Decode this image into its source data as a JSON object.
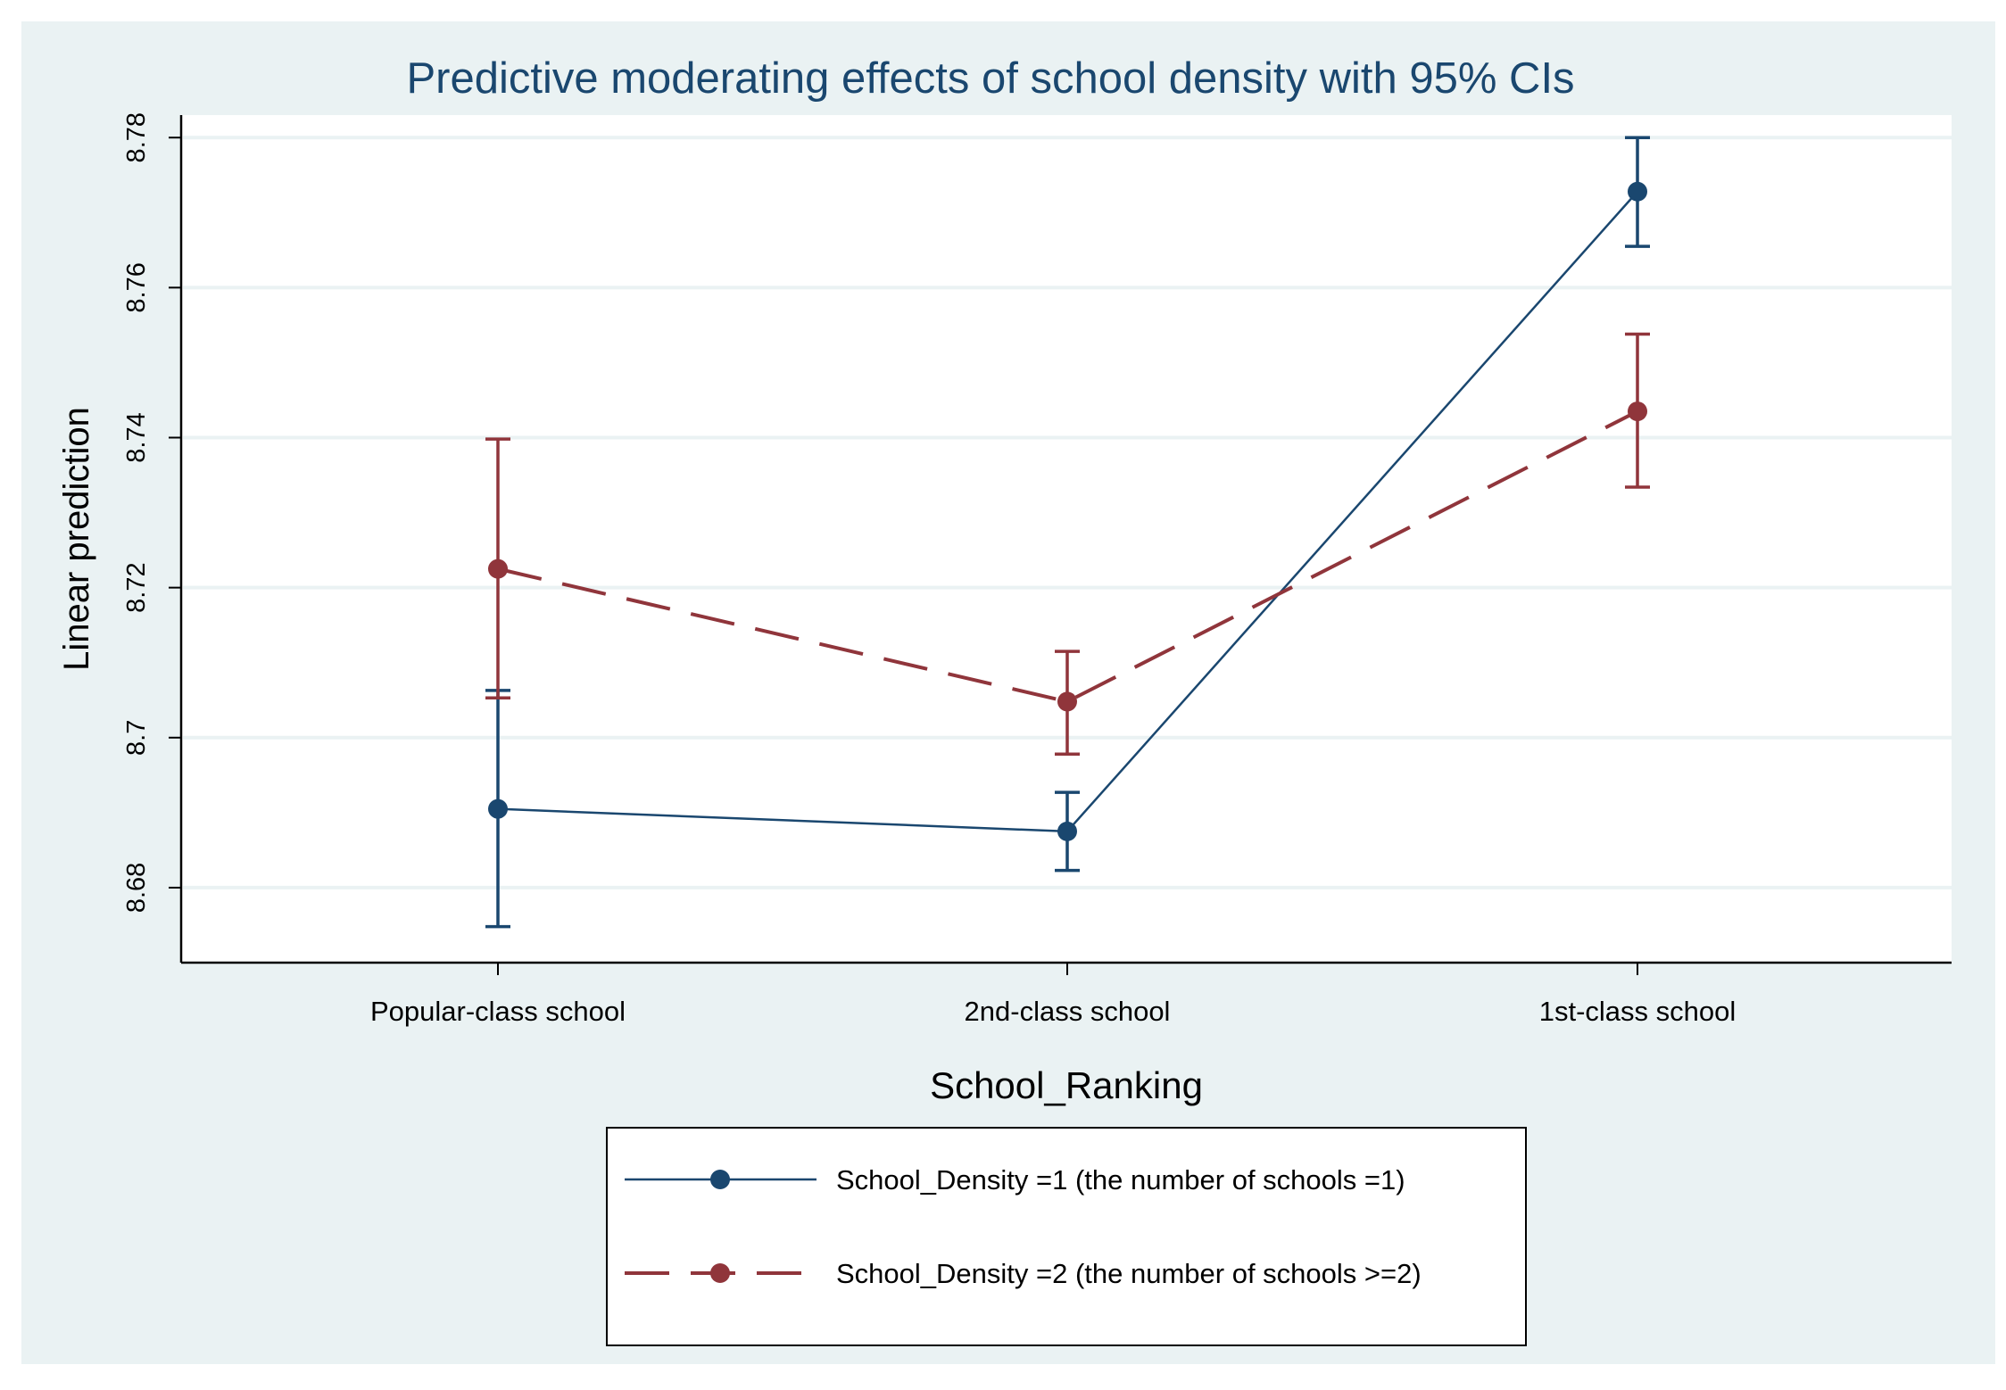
{
  "chart_data": {
    "type": "line",
    "title": "Predictive moderating effects of school density with 95% CIs",
    "xlabel": "School_Ranking",
    "ylabel": "Linear prediction",
    "categories": [
      "Popular-class school",
      "2nd-class school",
      "1st-class school"
    ],
    "ylim": [
      8.67,
      8.783
    ],
    "yticks": [
      8.68,
      8.7,
      8.72,
      8.74,
      8.76,
      8.78
    ],
    "ytick_labels": [
      "8.68",
      "8.7",
      "8.72",
      "8.74",
      "8.76",
      "8.78"
    ],
    "grid": true,
    "legend_position": "bottom",
    "series": [
      {
        "name": "School_Density =1 (the number of schools =1)",
        "values": [
          8.6905,
          8.6875,
          8.7728
        ],
        "ci_low": [
          8.6748,
          8.6823,
          8.7655
        ],
        "ci_high": [
          8.7063,
          8.6927,
          8.78
        ],
        "color": "#1a476f",
        "dash": "solid"
      },
      {
        "name": "School_Density =2 (the number of schools >=2)",
        "values": [
          8.7225,
          8.7048,
          8.7435
        ],
        "ci_low": [
          8.7053,
          8.6978,
          8.7334
        ],
        "ci_high": [
          8.7398,
          8.7115,
          8.7538
        ],
        "color": "#90353b",
        "dash": "dashed"
      }
    ]
  },
  "colors": {
    "outer_background": "#eaf2f3",
    "plot_background": "#ffffff",
    "grid": "#eaf2f3",
    "title": "#1a476f",
    "axis": "#000000"
  }
}
